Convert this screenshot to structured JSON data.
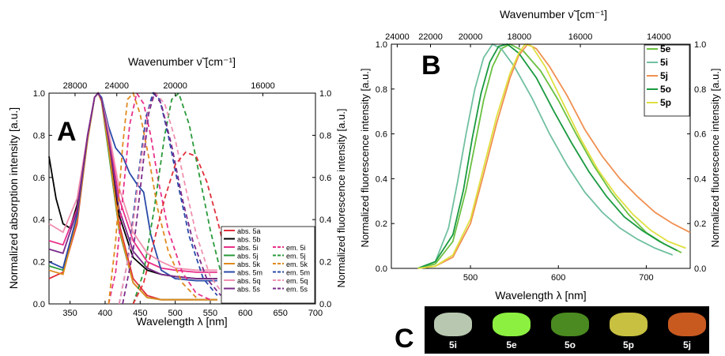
{
  "chart_data": [
    {
      "panel_label": "A",
      "type": "line",
      "xlabel": "Wavelength λ [nm]",
      "ylabel": "Normalized absorption intensity [a.u.]",
      "y2label": "Normalized fluorescence intensity [a.u.]",
      "top_xlabel": "Wavenumber ν̃ [cm⁻¹]",
      "xlim": [
        320,
        700
      ],
      "ylim": [
        0,
        1.0
      ],
      "y2lim": [
        0,
        1.0
      ],
      "x_ticks": [
        "350",
        "400",
        "450",
        "500",
        "550",
        "600",
        "650",
        "700"
      ],
      "y_ticks": [
        "0.0",
        "0.2",
        "0.4",
        "0.6",
        "0.8",
        "1.0"
      ],
      "y2_ticks": [
        "0.0",
        "0.2",
        "0.4",
        "0.6",
        "0.8",
        "1.0"
      ],
      "top_ticks": [
        "28000",
        "24000",
        "20000",
        "16000"
      ],
      "legend_position": "bottom-right",
      "series": [
        {
          "name": "abs. 5a",
          "style": "solid",
          "color": "#e0303a",
          "x": [
            320,
            340,
            360,
            375,
            385,
            390,
            395,
            405,
            420,
            440,
            460,
            480,
            500,
            520,
            550,
            560
          ],
          "y": [
            0.12,
            0.15,
            0.38,
            0.78,
            0.98,
            1.0,
            0.97,
            0.75,
            0.38,
            0.12,
            0.04,
            0.02,
            0.02,
            0.02,
            0.02,
            0.02
          ]
        },
        {
          "name": "abs. 5b",
          "style": "solid",
          "color": "#000000",
          "x": [
            320,
            330,
            340,
            350,
            360,
            375,
            385,
            390,
            395,
            405,
            420,
            440,
            460,
            480,
            500,
            530,
            560
          ],
          "y": [
            0.7,
            0.5,
            0.38,
            0.36,
            0.47,
            0.78,
            0.98,
            1.0,
            0.97,
            0.78,
            0.42,
            0.22,
            0.16,
            0.14,
            0.13,
            0.12,
            0.12
          ]
        },
        {
          "name": "abs. 5i",
          "style": "solid",
          "color": "#e8308a",
          "x": [
            320,
            340,
            360,
            375,
            385,
            390,
            395,
            405,
            420,
            440,
            460,
            480,
            500,
            530,
            560
          ],
          "y": [
            0.3,
            0.28,
            0.45,
            0.8,
            0.98,
            1.0,
            0.97,
            0.8,
            0.5,
            0.3,
            0.2,
            0.17,
            0.16,
            0.15,
            0.15
          ]
        },
        {
          "name": "abs. 5j",
          "style": "solid",
          "color": "#2a9a3a",
          "x": [
            320,
            340,
            360,
            375,
            385,
            390,
            395,
            405,
            420,
            440,
            460,
            480,
            500,
            530,
            560
          ],
          "y": [
            0.18,
            0.16,
            0.4,
            0.78,
            0.98,
            1.0,
            0.96,
            0.72,
            0.35,
            0.1,
            0.03,
            0.02,
            0.02,
            0.02,
            0.02
          ]
        },
        {
          "name": "abs. 5k",
          "style": "solid",
          "color": "#e08a20",
          "x": [
            320,
            340,
            360,
            375,
            385,
            390,
            395,
            405,
            420,
            440,
            460,
            480,
            500,
            530,
            560
          ],
          "y": [
            0.16,
            0.14,
            0.4,
            0.78,
            0.98,
            1.0,
            0.96,
            0.74,
            0.36,
            0.1,
            0.03,
            0.02,
            0.02,
            0.02,
            0.02
          ]
        },
        {
          "name": "abs. 5m",
          "style": "solid",
          "color": "#2a4aa8",
          "x": [
            320,
            340,
            360,
            375,
            385,
            390,
            395,
            405,
            415,
            425,
            435,
            445,
            455,
            465,
            480,
            500,
            530,
            560
          ],
          "y": [
            0.2,
            0.17,
            0.42,
            0.8,
            0.98,
            1.0,
            0.98,
            0.84,
            0.74,
            0.7,
            0.62,
            0.57,
            0.53,
            0.33,
            0.16,
            0.12,
            0.11,
            0.11
          ]
        },
        {
          "name": "abs. 5q",
          "style": "solid",
          "color": "#f090b0",
          "x": [
            320,
            340,
            360,
            375,
            385,
            390,
            395,
            405,
            420,
            440,
            460,
            480,
            500,
            530,
            560
          ],
          "y": [
            0.38,
            0.34,
            0.5,
            0.8,
            0.98,
            1.0,
            0.97,
            0.82,
            0.55,
            0.34,
            0.24,
            0.2,
            0.17,
            0.16,
            0.16
          ]
        },
        {
          "name": "abs. 5s",
          "style": "solid",
          "color": "#7a2a8a",
          "x": [
            320,
            340,
            360,
            375,
            385,
            390,
            395,
            405,
            420,
            440,
            460,
            480,
            500,
            530,
            560
          ],
          "y": [
            0.26,
            0.24,
            0.44,
            0.8,
            0.98,
            1.0,
            0.97,
            0.78,
            0.45,
            0.25,
            0.17,
            0.14,
            0.13,
            0.12,
            0.12
          ]
        },
        {
          "name": "em. 5i",
          "style": "dashed",
          "color": "#e8308a",
          "x": [
            405,
            415,
            425,
            435,
            445,
            455,
            465,
            475,
            490,
            510,
            530,
            550
          ],
          "y": [
            0.0,
            0.15,
            0.5,
            0.85,
            1.0,
            0.95,
            0.8,
            0.6,
            0.35,
            0.15,
            0.05,
            0.02
          ]
        },
        {
          "name": "em. 5j",
          "style": "dashed",
          "color": "#2a9a3a",
          "x": [
            440,
            455,
            470,
            485,
            495,
            505,
            520,
            535,
            550,
            565,
            580
          ],
          "y": [
            0.0,
            0.15,
            0.45,
            0.8,
            0.97,
            1.0,
            0.85,
            0.6,
            0.35,
            0.15,
            0.05
          ]
        },
        {
          "name": "em. 5k",
          "style": "dashed",
          "color": "#e08a20",
          "x": [
            405,
            415,
            425,
            432,
            440,
            450,
            462,
            475,
            490,
            510,
            530
          ],
          "y": [
            0.0,
            0.3,
            0.75,
            0.97,
            1.0,
            0.9,
            0.7,
            0.45,
            0.25,
            0.1,
            0.03
          ]
        },
        {
          "name": "em. 5m",
          "style": "dashed",
          "color": "#2a4aa8",
          "x": [
            420,
            432,
            445,
            458,
            468,
            478,
            490,
            505,
            520,
            540,
            560
          ],
          "y": [
            0.0,
            0.2,
            0.55,
            0.88,
            1.0,
            0.97,
            0.8,
            0.55,
            0.32,
            0.12,
            0.04
          ]
        },
        {
          "name": "em. 5q",
          "style": "dashed",
          "color": "#f090b0",
          "x": [
            420,
            435,
            450,
            462,
            472,
            485,
            500,
            515,
            530,
            550,
            570
          ],
          "y": [
            0.0,
            0.25,
            0.65,
            0.92,
            1.0,
            0.95,
            0.78,
            0.55,
            0.33,
            0.13,
            0.04
          ]
        },
        {
          "name": "em. 5s",
          "style": "dashed",
          "color": "#7a2a8a",
          "x": [
            425,
            440,
            452,
            462,
            470,
            480,
            495,
            510,
            525,
            545,
            565
          ],
          "y": [
            0.0,
            0.25,
            0.6,
            0.9,
            1.0,
            0.95,
            0.75,
            0.5,
            0.3,
            0.12,
            0.04
          ]
        },
        {
          "name": "",
          "style": "dashed",
          "color": "#e0303a",
          "x": [
            440,
            455,
            470,
            485,
            500,
            515,
            530,
            545,
            560,
            575,
            590
          ],
          "y": [
            0.0,
            0.1,
            0.3,
            0.5,
            0.66,
            0.72,
            0.7,
            0.58,
            0.4,
            0.2,
            0.06
          ]
        }
      ]
    },
    {
      "panel_label": "B",
      "type": "line",
      "xlabel": "Wavelength λ [nm]",
      "ylabel": "Normalized fluorescence intensity [a.u.]",
      "y2label": "Normalized fluorescence intensity [a.u.]",
      "top_xlabel": "Wavenumber ν̃ [cm⁻¹]",
      "xlim": [
        410,
        750
      ],
      "ylim": [
        0,
        1.0
      ],
      "y2lim": [
        0,
        1.0
      ],
      "x_ticks": [
        "500",
        "600",
        "700"
      ],
      "y_ticks": [
        "0.0",
        "0.2",
        "0.4",
        "0.6",
        "0.8",
        "1.0"
      ],
      "y2_ticks": [
        "0.0",
        "0.2",
        "0.4",
        "0.6",
        "0.8",
        "1.0"
      ],
      "top_ticks": [
        "24000",
        "22000",
        "20000",
        "18000",
        "16000",
        "14000"
      ],
      "legend_position": "top-right",
      "series": [
        {
          "name": "5e",
          "color": "#6ac040",
          "x": [
            440,
            460,
            480,
            495,
            505,
            515,
            525,
            535,
            545,
            560,
            580,
            600,
            620,
            640,
            660,
            680,
            700,
            720,
            740
          ],
          "y": [
            0.0,
            0.02,
            0.12,
            0.35,
            0.55,
            0.75,
            0.9,
            0.98,
            1.0,
            0.97,
            0.88,
            0.75,
            0.6,
            0.46,
            0.34,
            0.24,
            0.16,
            0.11,
            0.07
          ]
        },
        {
          "name": "5i",
          "color": "#70c0a0",
          "x": [
            440,
            460,
            475,
            485,
            495,
            505,
            515,
            525,
            535,
            550,
            570,
            590,
            610,
            630,
            650,
            670,
            690,
            710,
            730
          ],
          "y": [
            0.0,
            0.03,
            0.18,
            0.38,
            0.6,
            0.8,
            0.94,
            1.0,
            0.98,
            0.9,
            0.76,
            0.6,
            0.46,
            0.34,
            0.25,
            0.18,
            0.13,
            0.09,
            0.06
          ]
        },
        {
          "name": "5j",
          "color": "#f09050",
          "x": [
            440,
            460,
            480,
            500,
            515,
            530,
            545,
            555,
            565,
            575,
            590,
            610,
            630,
            650,
            670,
            690,
            710,
            730,
            750
          ],
          "y": [
            0.0,
            0.01,
            0.05,
            0.2,
            0.42,
            0.65,
            0.85,
            0.95,
            1.0,
            0.98,
            0.9,
            0.77,
            0.62,
            0.5,
            0.4,
            0.32,
            0.25,
            0.2,
            0.16
          ]
        },
        {
          "name": "5o",
          "color": "#1a9a40",
          "x": [
            440,
            460,
            480,
            492,
            502,
            512,
            522,
            532,
            542,
            555,
            575,
            595,
            615,
            635,
            655,
            675,
            695,
            715,
            735
          ],
          "y": [
            0.0,
            0.03,
            0.15,
            0.35,
            0.58,
            0.78,
            0.92,
            0.99,
            1.0,
            0.96,
            0.85,
            0.7,
            0.56,
            0.43,
            0.32,
            0.23,
            0.17,
            0.12,
            0.08
          ]
        },
        {
          "name": "5p",
          "color": "#e0e040",
          "x": [
            440,
            460,
            480,
            500,
            515,
            530,
            545,
            555,
            562,
            570,
            585,
            605,
            625,
            645,
            665,
            685,
            705,
            725,
            745
          ],
          "y": [
            0.0,
            0.01,
            0.06,
            0.22,
            0.45,
            0.68,
            0.87,
            0.96,
            1.0,
            0.99,
            0.9,
            0.74,
            0.58,
            0.44,
            0.33,
            0.24,
            0.17,
            0.12,
            0.09
          ]
        }
      ]
    }
  ],
  "photo": {
    "panel_label": "C",
    "samples": [
      {
        "label": "5i",
        "color": "#b8c8b0"
      },
      {
        "label": "5e",
        "color": "#8cf040"
      },
      {
        "label": "5o",
        "color": "#4a8a20"
      },
      {
        "label": "5p",
        "color": "#c8c040"
      },
      {
        "label": "5j",
        "color": "#c85a20"
      }
    ]
  }
}
